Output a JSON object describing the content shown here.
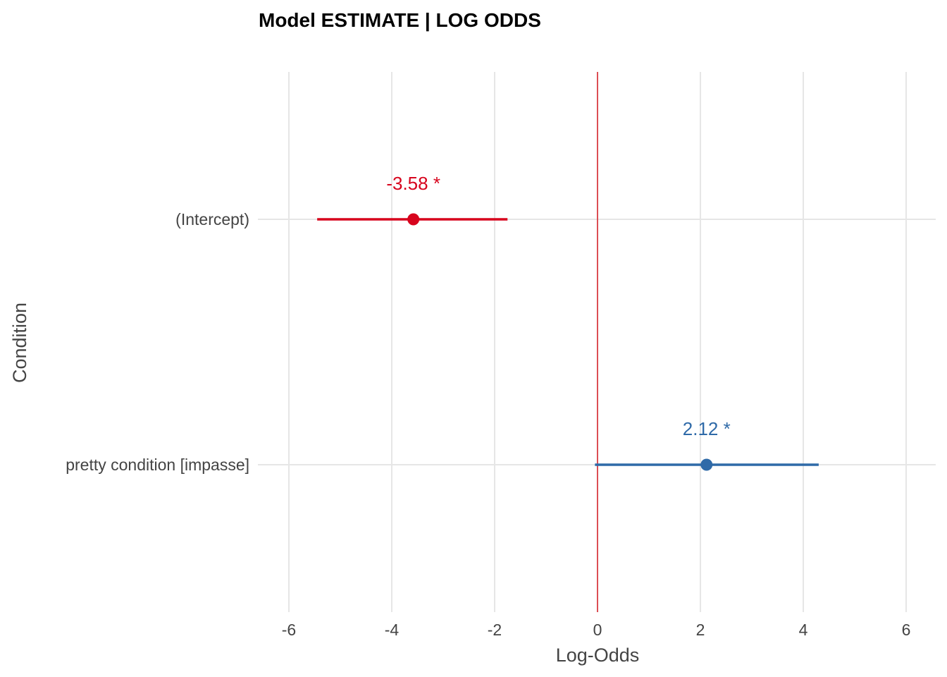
{
  "chart_data": {
    "type": "forest",
    "title": "Model ESTIMATE | LOG ODDS",
    "xlabel": "Log-Odds",
    "ylabel": "Condition",
    "xlim": [
      -6,
      6
    ],
    "x_ticks": [
      "-6",
      "-4",
      "-2",
      "0",
      "2",
      "4",
      "6"
    ],
    "x_tick_values": [
      -6,
      -4,
      -2,
      0,
      2,
      4,
      6
    ],
    "reference_line": 0,
    "reference_color": "#d9282f",
    "grid": true,
    "rows": [
      {
        "term": "(Intercept)",
        "estimate": -3.58,
        "ci_low": -5.45,
        "ci_high": -1.75,
        "label": "-3.58 *",
        "color": "#d7041d"
      },
      {
        "term": "pretty condition [impasse]",
        "estimate": 2.12,
        "ci_low": -0.05,
        "ci_high": 4.3,
        "label": "2.12 *",
        "color": "#2f6aa8"
      }
    ]
  }
}
